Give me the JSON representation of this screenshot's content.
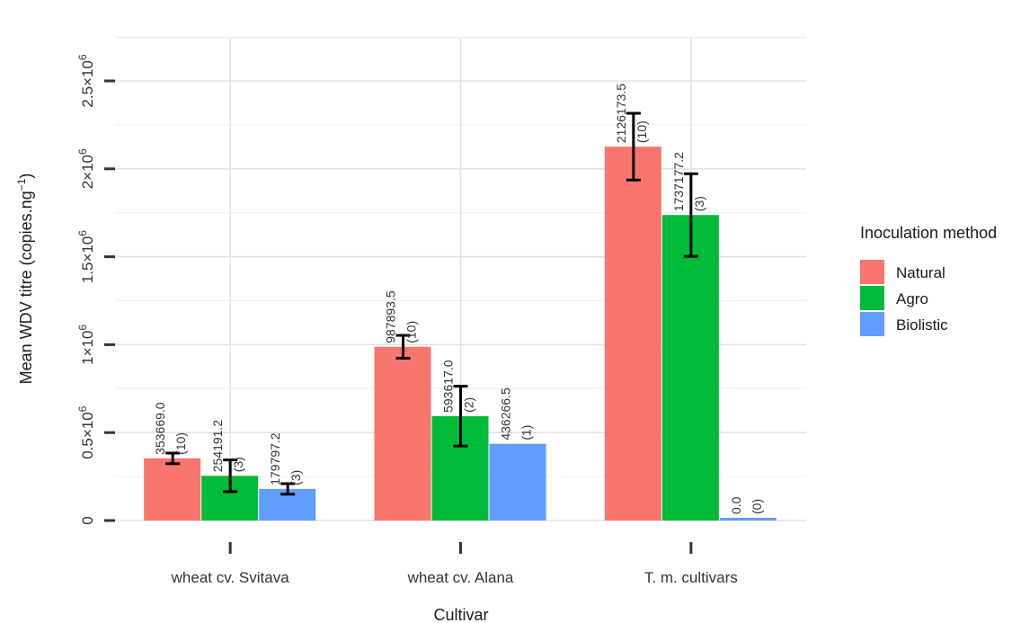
{
  "chart_data": {
    "type": "bar",
    "categories": [
      "wheat cv. Svitava",
      "wheat cv. Alana",
      "T. m. cultivars"
    ],
    "series": [
      {
        "name": "Natural",
        "color": "#F8766D",
        "values": [
          353669.0,
          987893.5,
          2126173.5
        ],
        "errors": [
          30000,
          65000,
          190000
        ],
        "labels": [
          "353669.0",
          "987893.5",
          "2126173.5"
        ],
        "counts": [
          "(10)",
          "(10)",
          "(10)"
        ]
      },
      {
        "name": "Agro",
        "color": "#00BA38",
        "values": [
          254191.2,
          593617.0,
          1737177.2
        ],
        "errors": [
          90000,
          170000,
          235000
        ],
        "labels": [
          "254191.2",
          "593617.0",
          "1737177.2"
        ],
        "counts": [
          "(3)",
          "(2)",
          "(3)"
        ]
      },
      {
        "name": "Biolistic",
        "color": "#619CFF",
        "values": [
          179797.2,
          436266.5,
          0.0
        ],
        "errors": [
          30000,
          null,
          null
        ],
        "labels": [
          "179797.2",
          "436266.5",
          "0.0"
        ],
        "counts": [
          "(3)",
          "(1)",
          "(0)"
        ]
      }
    ],
    "xlabel": "Cultivar",
    "ylabel": "Mean WDV titre (copies.ng",
    "ylabel_sup": "−1",
    "ylabel_close": ")",
    "ylim": [
      0,
      2800000
    ],
    "yticks": [
      {
        "value": 0,
        "mantissa": "0",
        "exp": ""
      },
      {
        "value": 500000,
        "mantissa": "0.5×10",
        "exp": "6"
      },
      {
        "value": 1000000,
        "mantissa": "1×10",
        "exp": "6"
      },
      {
        "value": 1500000,
        "mantissa": "1.5×10",
        "exp": "6"
      },
      {
        "value": 2000000,
        "mantissa": "2×10",
        "exp": "6"
      },
      {
        "value": 2500000,
        "mantissa": "2.5×10",
        "exp": "6"
      }
    ],
    "grid": true,
    "legend": {
      "title": "Inoculation method",
      "position": "right",
      "entries": [
        "Natural",
        "Agro",
        "Biolistic"
      ]
    }
  }
}
